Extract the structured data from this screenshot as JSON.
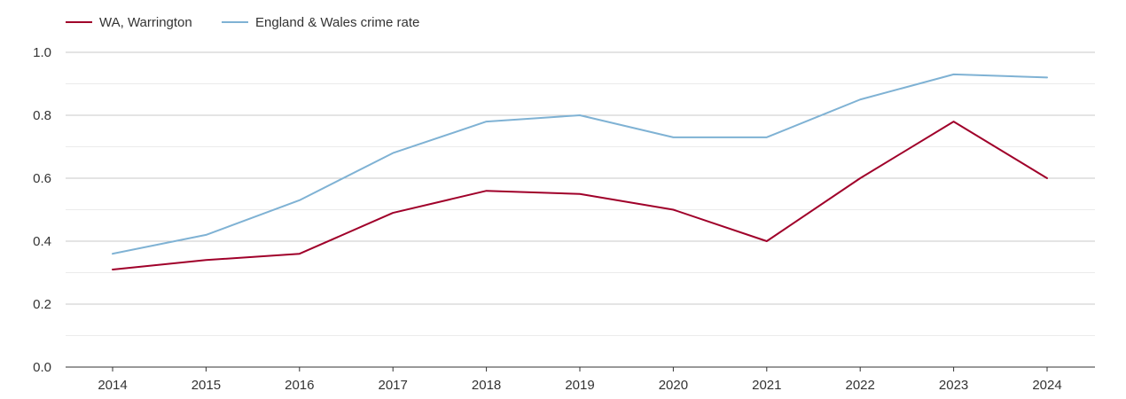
{
  "chart_data": {
    "type": "line",
    "title": "",
    "xlabel": "",
    "ylabel": "",
    "categories": [
      "2014",
      "2015",
      "2016",
      "2017",
      "2018",
      "2019",
      "2020",
      "2021",
      "2022",
      "2023",
      "2024"
    ],
    "ylim": [
      0,
      1.0
    ],
    "yticks": [
      "0.0",
      "0.2",
      "0.4",
      "0.6",
      "0.8",
      "1.0"
    ],
    "grid": true,
    "legend_position": "top-left",
    "series": [
      {
        "name": "WA, Warrington",
        "color": "#a0002a",
        "values": [
          0.31,
          0.34,
          0.36,
          0.49,
          0.56,
          0.55,
          0.5,
          0.4,
          0.6,
          0.78,
          0.6
        ]
      },
      {
        "name": "England & Wales crime rate",
        "color": "#7fb2d4",
        "values": [
          0.36,
          0.42,
          0.53,
          0.68,
          0.78,
          0.8,
          0.73,
          0.73,
          0.85,
          0.93,
          0.92
        ]
      }
    ]
  }
}
